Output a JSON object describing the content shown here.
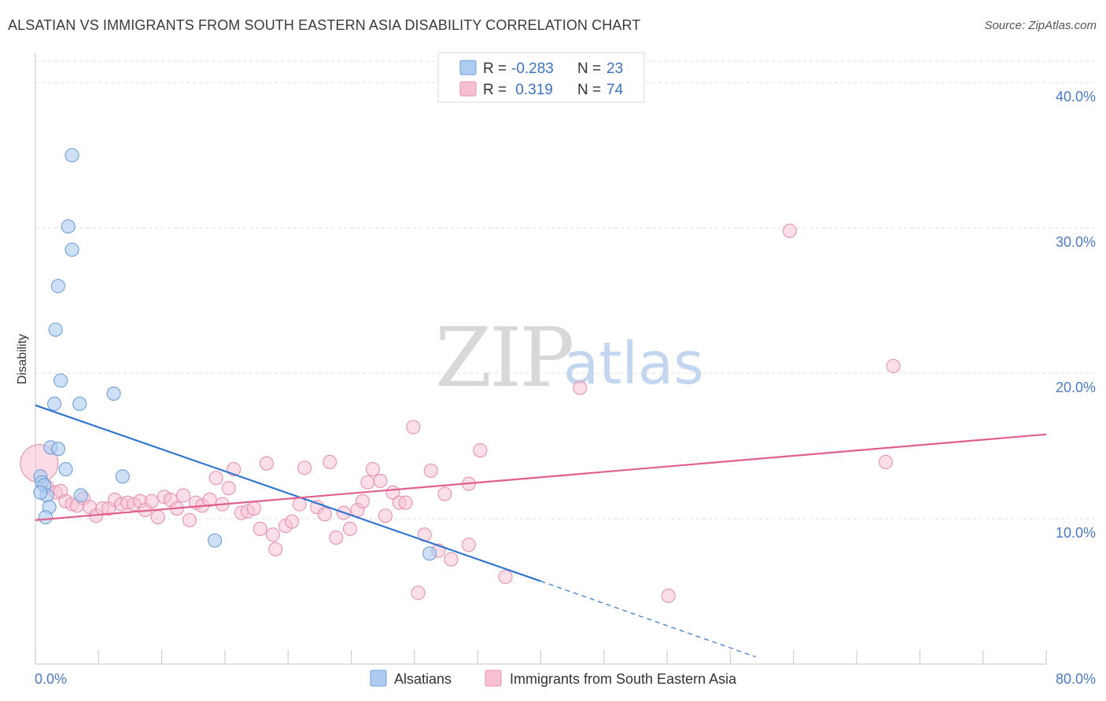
{
  "header": {
    "title": "ALSATIAN VS IMMIGRANTS FROM SOUTH EASTERN ASIA DISABILITY CORRELATION CHART",
    "source": "Source: ZipAtlas.com"
  },
  "watermark": {
    "zip": "ZIP",
    "atlas": "atlas"
  },
  "legend": {
    "rows": [
      {
        "r_label": "R =",
        "r_value": "-0.283",
        "n_label": "N =",
        "n_value": "23"
      },
      {
        "r_label": "R =",
        "r_value": " 0.319",
        "n_label": "N =",
        "n_value": "74"
      }
    ]
  },
  "bottom_legend": {
    "items": [
      {
        "label": "Alsatians"
      },
      {
        "label": "Immigrants from South Eastern Asia"
      }
    ]
  },
  "chart_data": {
    "type": "scatter",
    "title": "ALSATIAN VS IMMIGRANTS FROM SOUTH EASTERN ASIA DISABILITY CORRELATION CHART",
    "xlabel": "",
    "ylabel": "Disability",
    "xlim": [
      0,
      80
    ],
    "ylim": [
      0,
      42
    ],
    "x_tick_labels": [
      {
        "value": 0,
        "label": "0.0%"
      },
      {
        "value": 80,
        "label": "80.0%"
      }
    ],
    "y_ticks": [
      {
        "value": 10,
        "label": "10.0%"
      },
      {
        "value": 20,
        "label": "20.0%"
      },
      {
        "value": 30,
        "label": "30.0%"
      },
      {
        "value": 40,
        "label": "40.0%"
      }
    ],
    "grid": true,
    "legend_position": "top-center",
    "colors": {
      "blue_fill": "#aecbf0",
      "blue_stroke": "#6e9fd8",
      "blue_line": "#2e74d0",
      "pink_fill": "#f7c0d2",
      "pink_stroke": "#e891ae",
      "pink_line": "#e0608d"
    },
    "series": [
      {
        "name": "Alsatians",
        "color": "blue",
        "r": -0.283,
        "n": 23,
        "trend": {
          "x_start": 0,
          "y_start": 17.8,
          "x_solid_end": 40,
          "y_solid_end": 5.7,
          "x_dash_end": 57,
          "y_dash_end": 0.5
        },
        "points": [
          {
            "x": 2.9,
            "y": 35.0
          },
          {
            "x": 2.6,
            "y": 30.1
          },
          {
            "x": 2.9,
            "y": 28.5
          },
          {
            "x": 1.8,
            "y": 26.0
          },
          {
            "x": 1.6,
            "y": 23.0
          },
          {
            "x": 2.0,
            "y": 19.5
          },
          {
            "x": 1.5,
            "y": 17.9
          },
          {
            "x": 3.5,
            "y": 17.9
          },
          {
            "x": 6.2,
            "y": 18.6
          },
          {
            "x": 1.2,
            "y": 14.9
          },
          {
            "x": 1.8,
            "y": 14.8
          },
          {
            "x": 2.4,
            "y": 13.4
          },
          {
            "x": 6.9,
            "y": 12.9
          },
          {
            "x": 0.4,
            "y": 12.9
          },
          {
            "x": 0.5,
            "y": 12.5
          },
          {
            "x": 0.7,
            "y": 12.3
          },
          {
            "x": 0.9,
            "y": 11.6
          },
          {
            "x": 0.4,
            "y": 11.8
          },
          {
            "x": 1.1,
            "y": 10.8
          },
          {
            "x": 0.8,
            "y": 10.1
          },
          {
            "x": 3.6,
            "y": 11.6
          },
          {
            "x": 14.2,
            "y": 8.5
          },
          {
            "x": 31.2,
            "y": 7.6
          }
        ]
      },
      {
        "name": "Immigrants from South Eastern Asia",
        "color": "pink",
        "r": 0.319,
        "n": 74,
        "trend": {
          "x_start": 0,
          "y_start": 9.9,
          "x_end": 80,
          "y_end": 15.8
        },
        "points": [
          {
            "x": 0.3,
            "y": 13.8,
            "big": true
          },
          {
            "x": 0.9,
            "y": 12.2
          },
          {
            "x": 1.6,
            "y": 11.8
          },
          {
            "x": 2.0,
            "y": 11.9
          },
          {
            "x": 2.4,
            "y": 11.2
          },
          {
            "x": 2.9,
            "y": 11.0
          },
          {
            "x": 3.3,
            "y": 10.9
          },
          {
            "x": 3.8,
            "y": 11.4
          },
          {
            "x": 4.3,
            "y": 10.8
          },
          {
            "x": 4.8,
            "y": 10.2
          },
          {
            "x": 5.3,
            "y": 10.7
          },
          {
            "x": 5.8,
            "y": 10.7
          },
          {
            "x": 6.3,
            "y": 11.3
          },
          {
            "x": 6.8,
            "y": 11.0
          },
          {
            "x": 7.3,
            "y": 11.1
          },
          {
            "x": 7.8,
            "y": 11.0
          },
          {
            "x": 8.3,
            "y": 11.2
          },
          {
            "x": 8.7,
            "y": 10.6
          },
          {
            "x": 9.2,
            "y": 11.2
          },
          {
            "x": 9.7,
            "y": 10.1
          },
          {
            "x": 10.2,
            "y": 11.5
          },
          {
            "x": 10.7,
            "y": 11.3
          },
          {
            "x": 11.2,
            "y": 10.7
          },
          {
            "x": 11.7,
            "y": 11.6
          },
          {
            "x": 12.2,
            "y": 9.9
          },
          {
            "x": 12.7,
            "y": 11.1
          },
          {
            "x": 13.2,
            "y": 10.9
          },
          {
            "x": 13.8,
            "y": 11.3
          },
          {
            "x": 14.3,
            "y": 12.8
          },
          {
            "x": 14.8,
            "y": 11.0
          },
          {
            "x": 15.3,
            "y": 12.1
          },
          {
            "x": 15.7,
            "y": 13.4
          },
          {
            "x": 16.3,
            "y": 10.4
          },
          {
            "x": 16.8,
            "y": 10.5
          },
          {
            "x": 17.3,
            "y": 10.7
          },
          {
            "x": 17.8,
            "y": 9.3
          },
          {
            "x": 18.3,
            "y": 13.8
          },
          {
            "x": 18.8,
            "y": 8.9
          },
          {
            "x": 19.0,
            "y": 7.9
          },
          {
            "x": 19.8,
            "y": 9.5
          },
          {
            "x": 20.3,
            "y": 9.8
          },
          {
            "x": 20.9,
            "y": 11.0
          },
          {
            "x": 21.3,
            "y": 13.5
          },
          {
            "x": 22.3,
            "y": 10.8
          },
          {
            "x": 22.9,
            "y": 10.3
          },
          {
            "x": 23.3,
            "y": 13.9
          },
          {
            "x": 23.8,
            "y": 8.7
          },
          {
            "x": 24.4,
            "y": 10.4
          },
          {
            "x": 24.9,
            "y": 9.3
          },
          {
            "x": 25.5,
            "y": 10.6
          },
          {
            "x": 25.9,
            "y": 11.2
          },
          {
            "x": 26.3,
            "y": 12.5
          },
          {
            "x": 26.7,
            "y": 13.4
          },
          {
            "x": 27.3,
            "y": 12.6
          },
          {
            "x": 27.7,
            "y": 10.2
          },
          {
            "x": 28.3,
            "y": 11.8
          },
          {
            "x": 28.8,
            "y": 11.1
          },
          {
            "x": 29.3,
            "y": 11.1
          },
          {
            "x": 29.9,
            "y": 16.3
          },
          {
            "x": 30.3,
            "y": 4.9
          },
          {
            "x": 30.8,
            "y": 8.9
          },
          {
            "x": 31.3,
            "y": 13.3
          },
          {
            "x": 31.9,
            "y": 7.8
          },
          {
            "x": 32.4,
            "y": 11.7
          },
          {
            "x": 32.9,
            "y": 7.2
          },
          {
            "x": 34.3,
            "y": 12.4
          },
          {
            "x": 34.3,
            "y": 8.2
          },
          {
            "x": 35.2,
            "y": 14.7
          },
          {
            "x": 37.2,
            "y": 6.0
          },
          {
            "x": 43.1,
            "y": 19.0
          },
          {
            "x": 50.1,
            "y": 4.7
          },
          {
            "x": 59.7,
            "y": 29.8
          },
          {
            "x": 67.3,
            "y": 13.9
          },
          {
            "x": 67.9,
            "y": 20.5
          }
        ]
      }
    ]
  }
}
